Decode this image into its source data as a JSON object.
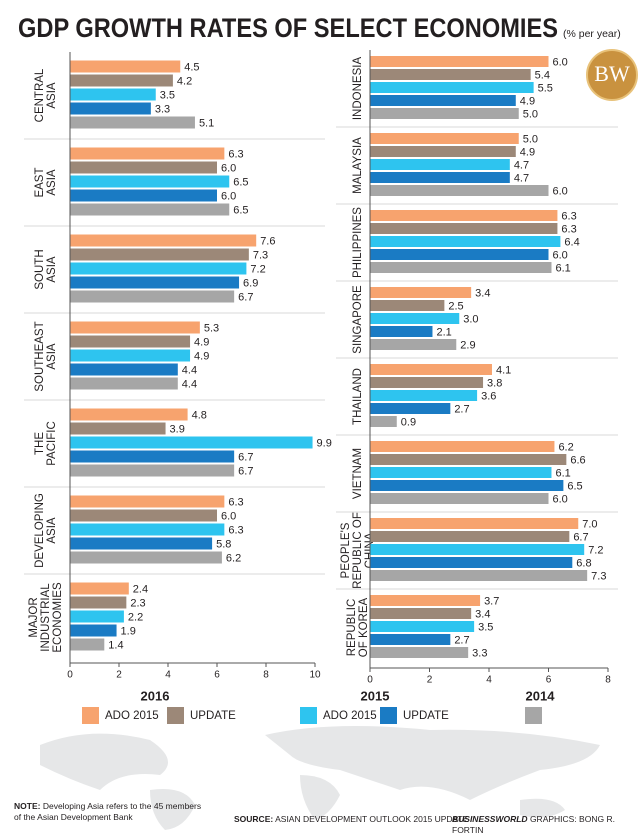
{
  "title": "GDP GROWTH RATES OF SELECT ECONOMIES",
  "subtitle": "(% per year)",
  "logo": "BW",
  "chart_data": [
    {
      "type": "bar",
      "orientation": "horizontal",
      "categories": [
        [
          "CENTRAL",
          "ASIA"
        ],
        [
          "EAST",
          "ASIA"
        ],
        [
          "SOUTH",
          "ASIA"
        ],
        [
          "SOUTHEAST",
          "ASIA"
        ],
        [
          "THE",
          "PACIFIC"
        ],
        [
          "DEVELOPING",
          "ASIA"
        ],
        [
          "MAJOR",
          "INDUSTRIAL",
          "ECONOMIES"
        ]
      ],
      "series": [
        {
          "color": "#f7a36e",
          "values": [
            4.5,
            6.3,
            7.6,
            5.3,
            4.8,
            6.3,
            2.4
          ],
          "value_labels": [
            "4.5",
            "6.3",
            "7.6",
            "5.3",
            "4.8",
            "6.3",
            "2.4"
          ]
        },
        {
          "color": "#9c8878",
          "values": [
            4.2,
            6.0,
            7.3,
            4.9,
            3.9,
            6.0,
            2.3
          ],
          "value_labels": [
            "4.2",
            "6.0",
            "7.3",
            "4.9",
            "3.9",
            "6.0",
            "2.3"
          ]
        },
        {
          "color": "#2ec4ef",
          "values": [
            3.5,
            6.5,
            7.2,
            4.9,
            9.9,
            6.3,
            2.2
          ],
          "value_labels": [
            "3.5",
            "6.5",
            "7.2",
            "4.9",
            "9.9",
            "6.3",
            "2.2"
          ]
        },
        {
          "color": "#1a7bc4",
          "values": [
            3.3,
            6.0,
            6.9,
            4.4,
            6.7,
            5.8,
            1.9
          ],
          "value_labels": [
            "3.3",
            "6.0",
            "6.9",
            "4.4",
            "6.7",
            "5.8",
            "1.9"
          ]
        },
        {
          "color": "#a6a6a6",
          "values": [
            5.1,
            6.5,
            6.7,
            4.4,
            6.7,
            6.2,
            1.4
          ],
          "value_labels": [
            "5.1",
            "6.5",
            "6.7",
            "4.4",
            "6.7",
            "6.2",
            "1.4"
          ]
        }
      ],
      "xlim": [
        0,
        10
      ],
      "xticks": [
        0,
        2,
        4,
        6,
        8,
        10
      ]
    },
    {
      "type": "bar",
      "orientation": "horizontal",
      "categories": [
        [
          "INDONESIA"
        ],
        [
          "MALAYSIA"
        ],
        [
          "PHILIPPINES"
        ],
        [
          "SINGAPORE"
        ],
        [
          "THAILAND"
        ],
        [
          "VIETNAM"
        ],
        [
          "PEOPLE'S",
          "REPUBLIC OF",
          "CHINA"
        ],
        [
          "REPUBLIC",
          "OF KOREA"
        ]
      ],
      "series": [
        {
          "color": "#f7a36e",
          "values": [
            6.0,
            5.0,
            6.3,
            3.4,
            4.1,
            6.2,
            7.0,
            3.7
          ],
          "value_labels": [
            "6.0",
            "5.0",
            "6.3",
            "3.4",
            "4.1",
            "6.2",
            "7.0",
            "3.7"
          ]
        },
        {
          "color": "#9c8878",
          "values": [
            5.4,
            4.9,
            6.3,
            2.5,
            3.8,
            6.6,
            6.7,
            3.4
          ],
          "value_labels": [
            "5.4",
            "4.9",
            "6.3",
            "2.5",
            "3.8",
            "6.6",
            "6.7",
            "3.4"
          ]
        },
        {
          "color": "#2ec4ef",
          "values": [
            5.5,
            4.7,
            6.4,
            3.0,
            3.6,
            6.1,
            7.2,
            3.5
          ],
          "value_labels": [
            "5.5",
            "4.7",
            "6.4",
            "3.0",
            "3.6",
            "6.1",
            "7.2",
            "3.5"
          ]
        },
        {
          "color": "#1a7bc4",
          "values": [
            4.9,
            4.7,
            6.0,
            2.1,
            2.7,
            6.5,
            6.8,
            2.7
          ],
          "value_labels": [
            "4.9",
            "4.7",
            "6.0",
            "2.1",
            "2.7",
            "6.5",
            "6.8",
            "2.7"
          ]
        },
        {
          "color": "#a6a6a6",
          "values": [
            5.0,
            6.0,
            6.1,
            2.9,
            0.9,
            6.0,
            7.3,
            3.3
          ],
          "value_labels": [
            "5.0",
            "6.0",
            "6.1",
            "2.9",
            "0.9",
            "6.0",
            "7.3",
            "3.3"
          ]
        }
      ],
      "xlim": [
        0,
        8
      ],
      "xticks": [
        0,
        2,
        4,
        6,
        8
      ]
    }
  ],
  "legend": [
    {
      "title": "2016",
      "entries": [
        {
          "name": "ADO 2015",
          "color": "#f7a36e"
        },
        {
          "name": "UPDATE",
          "color": "#9c8878"
        }
      ]
    },
    {
      "title": "2015",
      "entries": [
        {
          "name": "ADO 2015",
          "color": "#2ec4ef"
        },
        {
          "name": "UPDATE",
          "color": "#1a7bc4"
        }
      ]
    },
    {
      "title": "2014",
      "entries": [
        {
          "color": "#a6a6a6"
        }
      ]
    }
  ],
  "note": {
    "label": "NOTE:",
    "text": "Developing Asia refers to the 45 members of the Asian Development Bank"
  },
  "source": {
    "label": "SOURCE:",
    "text": "ASIAN DEVELOPMENT OUTLOOK 2015 UPDATE"
  },
  "credit": {
    "label": "BUSINESSWORLD",
    "text": "GRAPHICS: BONG R. FORTIN"
  }
}
